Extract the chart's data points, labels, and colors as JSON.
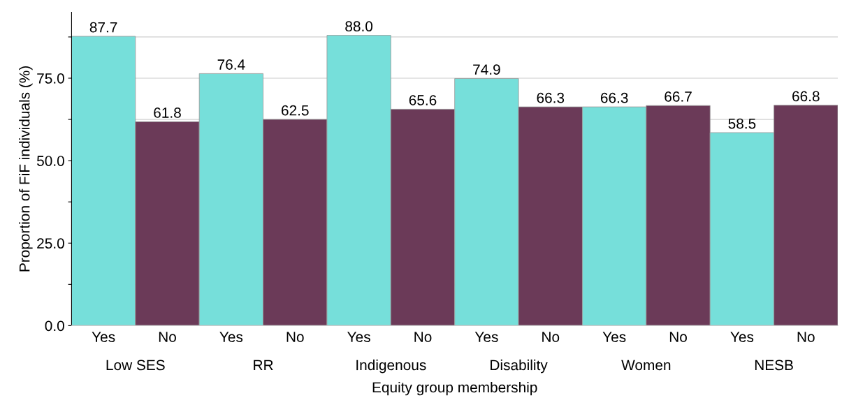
{
  "chart_data": {
    "type": "bar",
    "xlabel": "Equity group membership",
    "ylabel": "Proportion of FiF individuals (%)",
    "categories": [
      "Yes",
      "No",
      "Yes",
      "No",
      "Yes",
      "No",
      "Yes",
      "No",
      "Yes",
      "No",
      "Yes",
      "No"
    ],
    "values": [
      87.7,
      61.8,
      76.4,
      62.5,
      88.0,
      65.6,
      74.9,
      66.3,
      66.3,
      66.7,
      58.5,
      66.8
    ],
    "value_labels": [
      "87.7",
      "61.8",
      "76.4",
      "62.5",
      "88.0",
      "65.6",
      "74.9",
      "66.3",
      "66.3",
      "66.7",
      "58.5",
      "66.8"
    ],
    "colors": [
      "#76dfda",
      "#6b3a58",
      "#76dfda",
      "#6b3a58",
      "#76dfda",
      "#6b3a58",
      "#76dfda",
      "#6b3a58",
      "#76dfda",
      "#6b3a58",
      "#76dfda",
      "#6b3a58"
    ],
    "annotations": [
      "Low SES",
      "RR",
      "Indigenous",
      "Disability",
      "Women",
      "NESB"
    ],
    "ylim": [
      0,
      95
    ],
    "yticks": [
      {
        "value": 0,
        "label": "0.0"
      },
      {
        "value": 12.5,
        "label": null
      },
      {
        "value": 25,
        "label": "25.0"
      },
      {
        "value": 37.5,
        "label": null
      },
      {
        "value": 50,
        "label": "50.0"
      },
      {
        "value": 62.5,
        "label": null
      },
      {
        "value": 75,
        "label": "75.0"
      },
      {
        "value": 87.5,
        "label": null
      }
    ],
    "grid": "y",
    "legend": false
  }
}
